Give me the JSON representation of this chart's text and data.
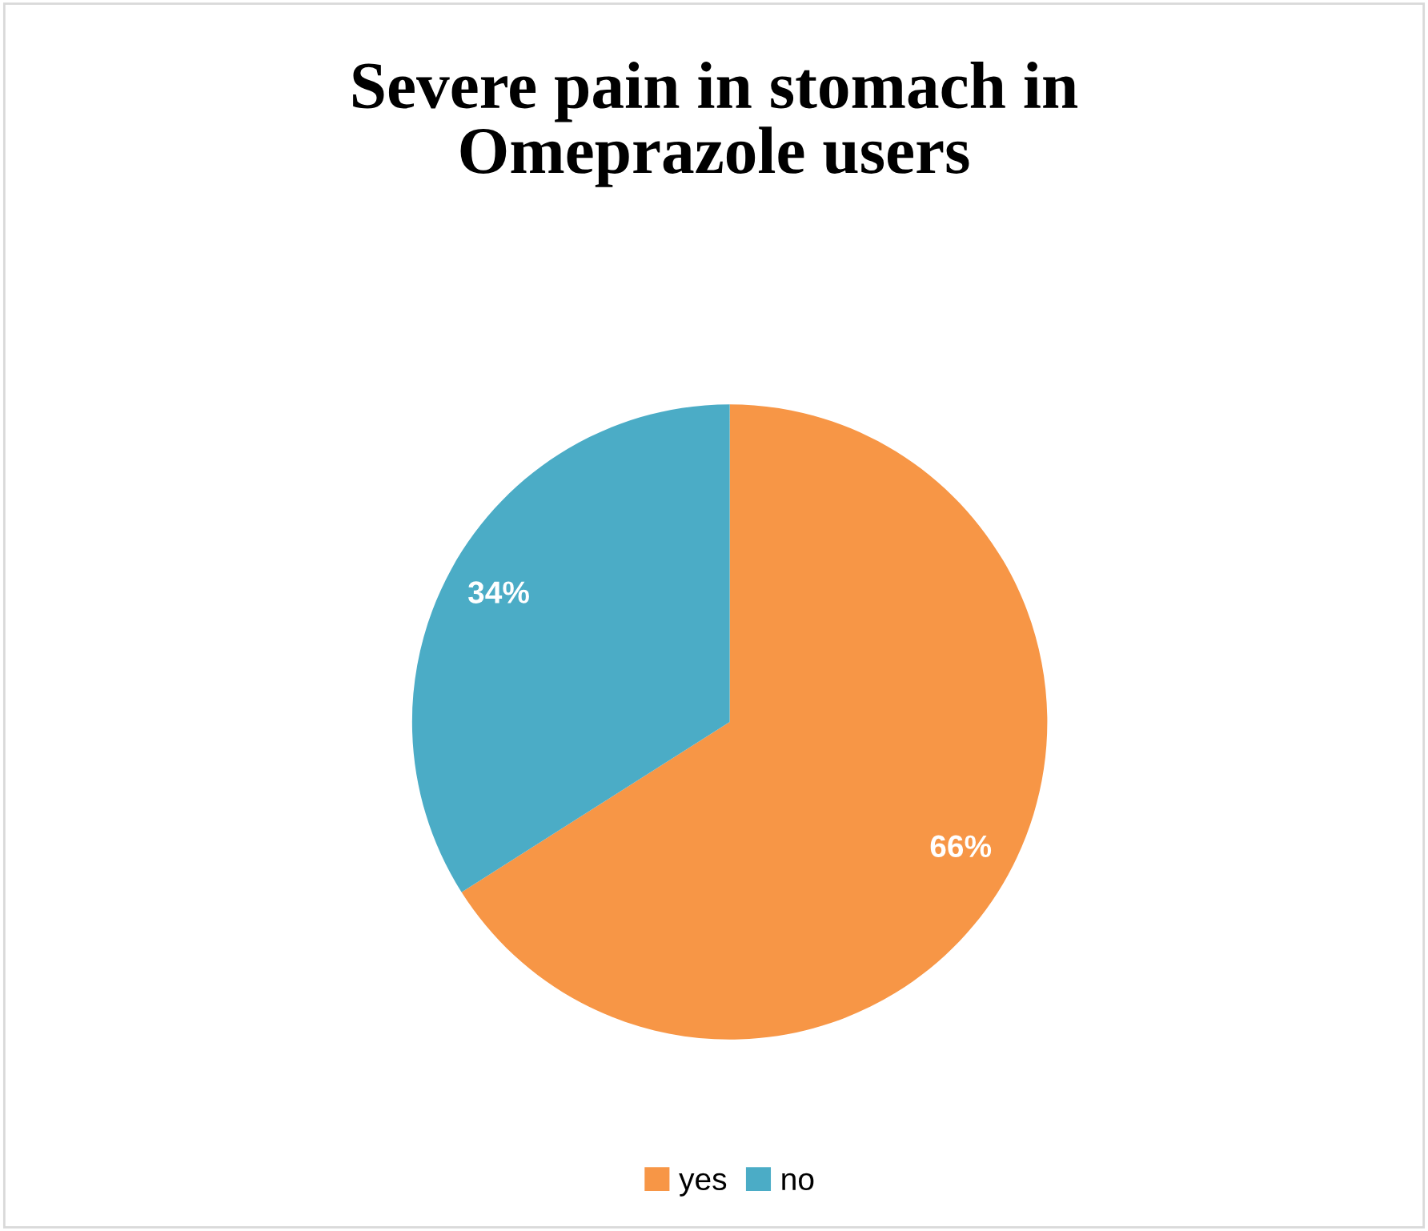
{
  "chart_data": {
    "type": "pie",
    "title": "Severe pain in stomach in\nOmeprazole users",
    "categories": [
      "yes",
      "no"
    ],
    "values": [
      66,
      34
    ],
    "colors": [
      "#f79646",
      "#4bacc6"
    ],
    "value_labels": [
      "66%",
      "34%"
    ],
    "legend": "bottom"
  }
}
